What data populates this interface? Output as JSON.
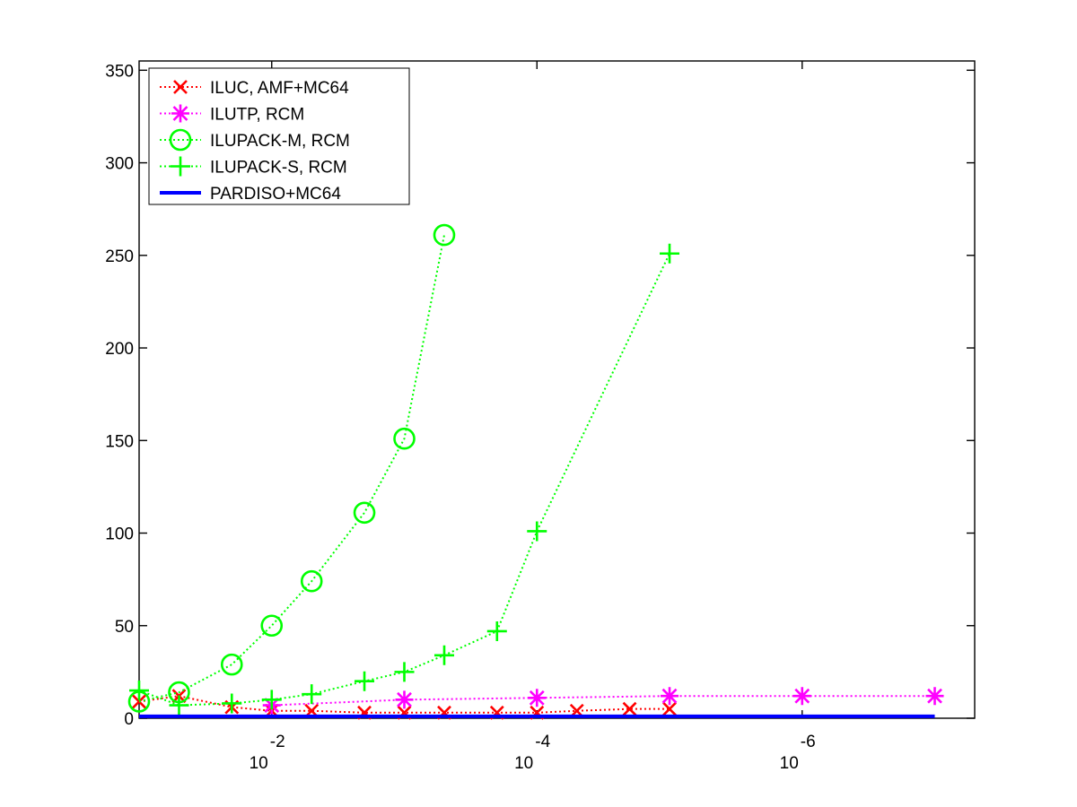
{
  "chart_data": {
    "type": "line",
    "x_scale": "log",
    "x_direction": "decreasing",
    "x_ticks": [
      {
        "value": 0.01,
        "base": "10",
        "exponent": "-2"
      },
      {
        "value": 0.0001,
        "base": "10",
        "exponent": "-4"
      },
      {
        "value": 1e-06,
        "base": "10",
        "exponent": "-6"
      }
    ],
    "xlim": [
      0.1,
      5e-08
    ],
    "ylim": [
      0,
      355
    ],
    "y_ticks": [
      "0",
      "50",
      "100",
      "150",
      "200",
      "250",
      "300",
      "350"
    ],
    "grid": false,
    "legend_position": "top-left",
    "series": [
      {
        "name": "ILUC, AMF+MC64",
        "color": "#ff0000",
        "marker": "x",
        "line": "dotted",
        "x": [
          0.1,
          0.05,
          0.02,
          0.01,
          0.005,
          0.002,
          0.001,
          0.0005,
          0.0002,
          0.0001,
          5e-05,
          2e-05,
          1e-05
        ],
        "y": [
          9,
          12,
          6,
          4,
          4,
          3,
          3,
          3,
          3,
          3,
          4,
          5,
          5
        ]
      },
      {
        "name": "ILUTP, RCM",
        "color": "#ff00ff",
        "marker": "asterisk",
        "line": "dotted",
        "x": [
          0.01,
          0.001,
          0.0001,
          1e-05,
          1e-06,
          1e-07
        ],
        "y": [
          7,
          10,
          11,
          12,
          12,
          12
        ]
      },
      {
        "name": "ILUPACK-M, RCM",
        "color": "#00ff00",
        "marker": "circle",
        "line": "dotted",
        "x": [
          0.1,
          0.05,
          0.02,
          0.01,
          0.005,
          0.002,
          0.001,
          0.0005
        ],
        "y": [
          9,
          14,
          29,
          50,
          74,
          111,
          151,
          261
        ]
      },
      {
        "name": "ILUPACK-S, RCM",
        "color": "#00ff00",
        "marker": "plus",
        "line": "dotted",
        "x": [
          0.1,
          0.05,
          0.02,
          0.01,
          0.005,
          0.002,
          0.001,
          0.0005,
          0.0002,
          0.0001,
          1e-05
        ],
        "y": [
          15,
          7,
          8,
          10,
          13,
          20,
          25,
          34,
          47,
          101,
          251
        ]
      },
      {
        "name": "PARDISO+MC64",
        "color": "#0000ff",
        "marker": "none",
        "line": "solid",
        "x": [
          0.1,
          1e-07
        ],
        "y": [
          1,
          1
        ]
      }
    ]
  }
}
